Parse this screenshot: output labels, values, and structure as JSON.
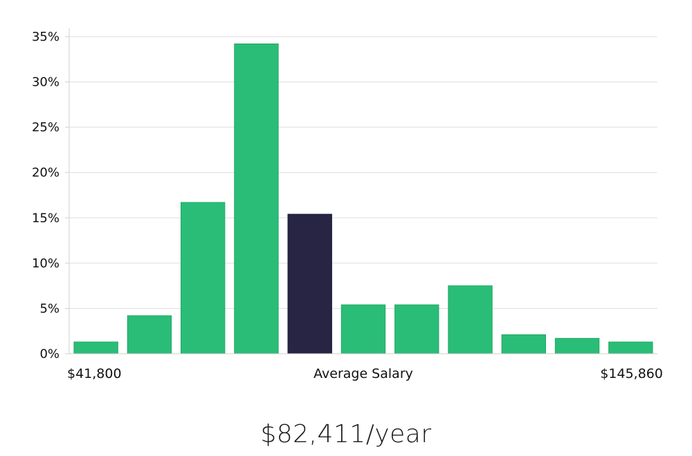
{
  "colors": {
    "bar": "#2abd77",
    "highlight_bar": "#282443",
    "grid": "#dddddd",
    "axis": "#cfcfcf",
    "text": "#111111"
  },
  "chart_data": {
    "type": "bar",
    "categories": [
      "1",
      "2",
      "3",
      "4",
      "5",
      "6",
      "7",
      "8",
      "9",
      "10",
      "11"
    ],
    "values": [
      1.3,
      4.2,
      16.7,
      34.2,
      15.4,
      5.4,
      5.4,
      7.5,
      2.1,
      1.7,
      1.3
    ],
    "highlight_index": 4,
    "ylim": [
      0,
      35
    ],
    "yticks": [
      0,
      5,
      10,
      15,
      20,
      25,
      30,
      35
    ],
    "ytick_suffix": "%",
    "grid": true,
    "x_labels": {
      "min": "$41,800",
      "center": "Average Salary",
      "max": "$145,860"
    }
  },
  "headline": "$82,411/year"
}
